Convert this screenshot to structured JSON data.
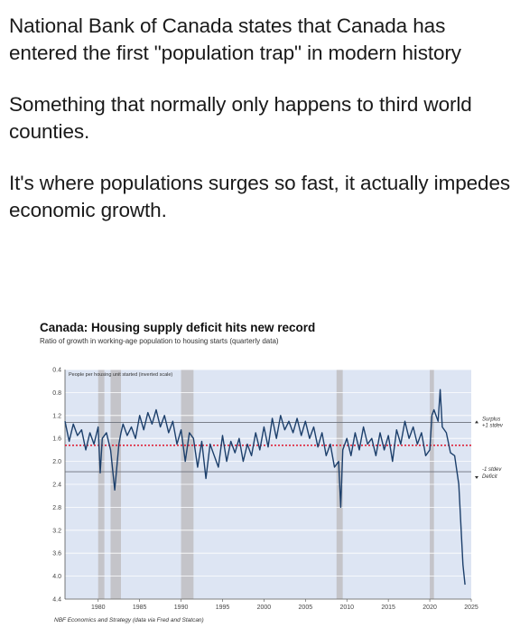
{
  "post": {
    "paragraphs": [
      "National Bank of Canada states that Canada has entered the first  \"population trap\" in modern history",
      "Something that normally only happens to third world counties.",
      "It's where populations surges so fast, it actually impedes economic growth."
    ]
  },
  "chart_data": {
    "type": "line",
    "title": "Canada: Housing supply deficit hits new record",
    "subtitle": "Ratio of growth in working-age population to housing starts (quarterly data)",
    "ylabel": "People per housing unit started (inverted scale)",
    "source": "NBF Economics and Strategy (data via Fred and Statcan)",
    "y_inverted": true,
    "ylim": [
      0.4,
      4.4
    ],
    "yticks": [
      "0.4",
      "0.8",
      "1.2",
      "1.6",
      "2.0",
      "2.4",
      "2.8",
      "3.2",
      "3.6",
      "4.0",
      "4.4"
    ],
    "xlim": [
      1976,
      2025
    ],
    "xticks": [
      "1980",
      "1985",
      "1990",
      "1995",
      "2000",
      "2005",
      "2010",
      "2015",
      "2020",
      "2025"
    ],
    "reference_lines": {
      "mean": 1.72,
      "upper_1sd": 1.32,
      "lower_1sd": 2.18
    },
    "annotations": {
      "surplus": "Surplus",
      "plus_1sd": "+1 stdev",
      "minus_1sd": "-1 stdev",
      "deficit": "Deficit"
    },
    "recessions": [
      [
        1980.0,
        1980.75
      ],
      [
        1981.5,
        1982.75
      ],
      [
        1990.0,
        1991.5
      ],
      [
        2008.75,
        2009.5
      ],
      [
        2020.0,
        2020.5
      ]
    ],
    "series": [
      {
        "x": [
          1976.0,
          1976.5,
          1977.0,
          1977.5,
          1978.0,
          1978.5,
          1979.0,
          1979.5,
          1980.0,
          1980.25,
          1980.5,
          1981.0,
          1981.5,
          1982.0,
          1982.5,
          1982.75,
          1983.0,
          1983.5,
          1984.0,
          1984.5,
          1985.0,
          1985.5,
          1986.0,
          1986.5,
          1987.0,
          1987.5,
          1988.0,
          1988.5,
          1989.0,
          1989.5,
          1990.0,
          1990.5,
          1991.0,
          1991.5,
          1992.0,
          1992.5,
          1993.0,
          1993.5,
          1994.0,
          1994.5,
          1995.0,
          1995.5,
          1996.0,
          1996.5,
          1997.0,
          1997.5,
          1998.0,
          1998.5,
          1999.0,
          1999.5,
          2000.0,
          2000.5,
          2001.0,
          2001.5,
          2002.0,
          2002.5,
          2003.0,
          2003.5,
          2004.0,
          2004.5,
          2005.0,
          2005.5,
          2006.0,
          2006.5,
          2007.0,
          2007.5,
          2008.0,
          2008.5,
          2009.0,
          2009.25,
          2009.5,
          2010.0,
          2010.5,
          2011.0,
          2011.5,
          2012.0,
          2012.5,
          2013.0,
          2013.5,
          2014.0,
          2014.5,
          2015.0,
          2015.5,
          2016.0,
          2016.5,
          2017.0,
          2017.5,
          2018.0,
          2018.5,
          2019.0,
          2019.5,
          2020.0,
          2020.25,
          2020.5,
          2021.0,
          2021.25,
          2021.5,
          2022.0,
          2022.5,
          2023.0,
          2023.5,
          2024.0,
          2024.25
        ],
        "y": [
          1.3,
          1.65,
          1.35,
          1.55,
          1.45,
          1.8,
          1.5,
          1.7,
          1.4,
          2.2,
          1.6,
          1.5,
          1.8,
          2.5,
          1.7,
          1.5,
          1.35,
          1.55,
          1.4,
          1.6,
          1.2,
          1.45,
          1.15,
          1.35,
          1.1,
          1.4,
          1.2,
          1.5,
          1.3,
          1.7,
          1.45,
          2.0,
          1.5,
          1.6,
          2.1,
          1.65,
          2.3,
          1.7,
          1.9,
          2.1,
          1.55,
          2.0,
          1.65,
          1.85,
          1.6,
          2.0,
          1.7,
          1.9,
          1.5,
          1.8,
          1.4,
          1.75,
          1.25,
          1.6,
          1.2,
          1.45,
          1.3,
          1.5,
          1.25,
          1.55,
          1.3,
          1.6,
          1.4,
          1.75,
          1.5,
          1.9,
          1.7,
          2.1,
          2.0,
          2.8,
          1.8,
          1.6,
          1.9,
          1.5,
          1.8,
          1.4,
          1.7,
          1.6,
          1.9,
          1.5,
          1.8,
          1.55,
          2.0,
          1.45,
          1.7,
          1.3,
          1.6,
          1.4,
          1.7,
          1.5,
          1.9,
          1.8,
          1.2,
          1.1,
          1.3,
          0.75,
          1.4,
          1.5,
          1.85,
          1.9,
          2.4,
          3.8,
          4.15
        ]
      }
    ]
  }
}
